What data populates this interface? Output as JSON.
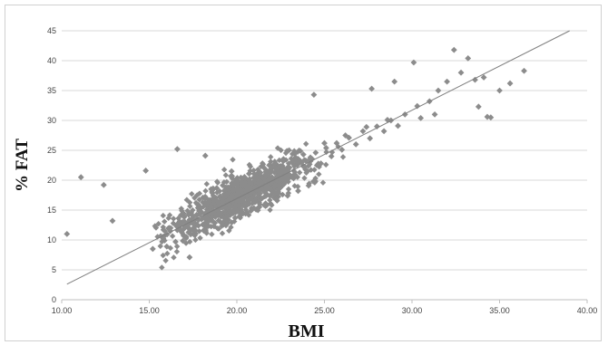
{
  "chart_data": {
    "type": "scatter",
    "title": "",
    "xlabel": "BMI",
    "ylabel": "% FAT",
    "xlim": [
      10,
      40
    ],
    "ylim": [
      0,
      45
    ],
    "x_ticks": [
      "10.00",
      "15.00",
      "20.00",
      "25.00",
      "30.00",
      "35.00",
      "40.00"
    ],
    "y_ticks": [
      "0",
      "5",
      "10",
      "15",
      "20",
      "25",
      "30",
      "35",
      "40",
      "45"
    ],
    "grid": "horizontal",
    "legend": "none",
    "marker_color": "#8c8c8c",
    "trend_line_color": "#7f7f7f",
    "trend_line": {
      "x": [
        10.3,
        39.0
      ],
      "y": [
        2.6,
        45.0
      ]
    },
    "points": {
      "x": [
        10.3,
        11.1,
        12.4,
        12.9,
        14.8,
        16.6,
        18.2,
        15.2,
        15.8,
        16.2,
        16.8,
        17.4,
        17.7,
        18.0,
        18.4,
        18.6,
        19.0,
        19.2,
        19.5,
        19.8,
        20.0,
        20.3,
        20.6,
        20.9,
        21.2,
        21.5,
        21.8,
        22.1,
        22.4,
        22.7,
        23.0,
        23.3,
        23.6,
        23.9,
        24.2,
        24.5,
        24.8,
        25.1,
        25.4,
        25.7,
        26.0,
        26.4,
        26.8,
        27.2,
        27.6,
        28.0,
        28.4,
        28.8,
        29.2,
        29.6,
        30.1,
        30.5,
        31.0,
        31.5,
        32.0,
        32.4,
        32.8,
        33.2,
        33.6,
        34.1,
        34.5,
        35.0,
        35.6,
        36.4,
        30.3,
        24.4,
        27.7,
        29.0,
        31.3,
        33.8,
        34.3,
        16.0,
        16.5,
        17.1,
        17.6,
        18.1,
        18.7,
        19.3,
        19.9,
        20.5,
        21.1,
        21.7,
        22.3,
        22.9,
        23.5,
        24.1,
        16.9,
        17.5,
        18.3,
        19.1,
        20.2,
        21.4,
        22.6,
        23.8,
        25.0,
        26.2,
        27.4,
        28.6,
        17.3,
        19.7
      ],
      "y": [
        11.0,
        20.5,
        19.2,
        13.2,
        21.6,
        25.2,
        24.1,
        8.5,
        10.2,
        11.5,
        12.6,
        13.4,
        14.2,
        14.6,
        15.1,
        14.0,
        15.8,
        16.3,
        15.2,
        17.0,
        16.6,
        18.2,
        17.4,
        18.9,
        19.5,
        18.3,
        20.4,
        19.6,
        21.3,
        20.2,
        22.1,
        21.0,
        23.0,
        22.2,
        23.8,
        24.6,
        22.8,
        25.4,
        24.0,
        26.2,
        25.1,
        27.1,
        26.0,
        28.2,
        27.0,
        29.0,
        28.2,
        30.0,
        29.1,
        31.0,
        39.7,
        30.4,
        33.2,
        35.0,
        36.5,
        41.8,
        38.0,
        40.4,
        36.8,
        37.2,
        30.5,
        35.0,
        36.2,
        38.3,
        32.4,
        34.3,
        35.3,
        36.5,
        31.0,
        32.3,
        30.6,
        8.9,
        9.7,
        10.3,
        10.9,
        11.6,
        12.3,
        13.0,
        13.7,
        14.4,
        15.1,
        15.8,
        16.6,
        17.4,
        18.2,
        19.1,
        13.0,
        14.0,
        15.6,
        17.2,
        18.8,
        20.6,
        22.4,
        24.3,
        26.2,
        27.5,
        28.9,
        30.1,
        7.1,
        21.5
      ]
    }
  }
}
